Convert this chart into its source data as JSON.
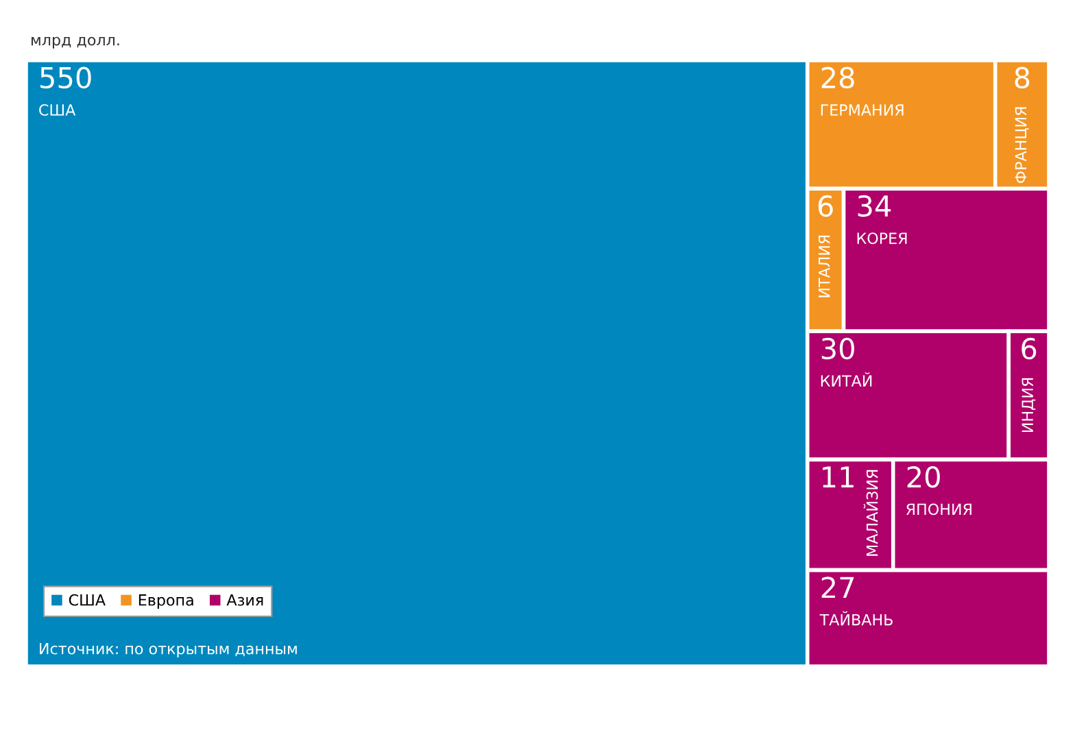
{
  "chart_data": {
    "type": "other",
    "title": "млрд долл.",
    "categories": [
      "США",
      "ГЕРМАНИЯ",
      "ФРАНЦИЯ",
      "ИТАЛИЯ",
      "КОРЕЯ",
      "КИТАЙ",
      "ИНДИЯ",
      "МАЛАЙЗИЯ",
      "ЯПОНИЯ",
      "ТАЙВАНЬ"
    ],
    "series": [
      {
        "name": "США",
        "color": "#0087bd",
        "values": [
          550,
          null,
          null,
          null,
          null,
          null,
          null,
          null,
          null,
          null
        ]
      },
      {
        "name": "Европа",
        "color": "#f39422",
        "values": [
          null,
          28,
          8,
          6,
          null,
          null,
          null,
          null,
          null,
          null
        ]
      },
      {
        "name": "Азия",
        "color": "#b0006a",
        "values": [
          null,
          null,
          null,
          null,
          34,
          30,
          6,
          11,
          20,
          27
        ]
      }
    ],
    "data_labels": true,
    "legend": "bottom left",
    "annotations": [
      "Источник: по открытым данным"
    ]
  }
}
